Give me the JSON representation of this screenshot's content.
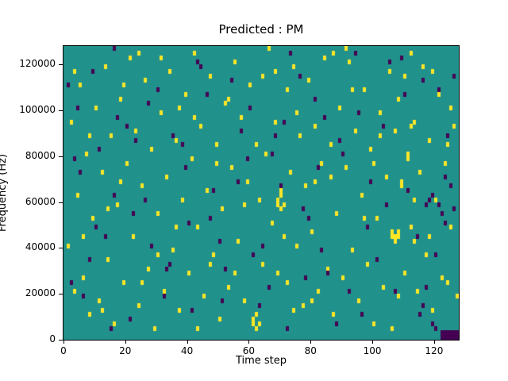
{
  "chart_data": {
    "type": "heatmap",
    "title": "Predicted : PM",
    "xlabel": "Time step",
    "ylabel": "Frequency (Hz)",
    "x_range": [
      0,
      128
    ],
    "y_range": [
      0,
      128000
    ],
    "time_steps": 128,
    "freq_bins": 64,
    "freq_bin_hz": 2000,
    "x_ticks": [
      0,
      20,
      40,
      60,
      80,
      100,
      120
    ],
    "y_ticks": [
      0,
      20000,
      40000,
      60000,
      80000,
      100000,
      120000
    ],
    "grid": false,
    "legend": "none",
    "colors": {
      "background": "#21918c",
      "active": "#fde725",
      "inactive": "#440154",
      "figure": "#ffffff",
      "axis": "#000000"
    },
    "yellow_cells": [
      [
        1,
        20
      ],
      [
        2,
        47
      ],
      [
        3,
        10
      ],
      [
        3,
        58
      ],
      [
        4,
        31
      ],
      [
        5,
        55
      ],
      [
        6,
        13
      ],
      [
        6,
        22
      ],
      [
        7,
        40
      ],
      [
        8,
        5
      ],
      [
        8,
        44
      ],
      [
        9,
        26
      ],
      [
        10,
        50
      ],
      [
        11,
        8
      ],
      [
        12,
        6
      ],
      [
        12,
        36
      ],
      [
        13,
        59
      ],
      [
        14,
        17
      ],
      [
        14,
        28
      ],
      [
        15,
        44
      ],
      [
        16,
        3
      ],
      [
        17,
        29
      ],
      [
        18,
        34
      ],
      [
        18,
        52
      ],
      [
        19,
        12
      ],
      [
        19,
        55
      ],
      [
        20,
        38
      ],
      [
        21,
        61
      ],
      [
        22,
        22
      ],
      [
        23,
        45
      ],
      [
        24,
        7
      ],
      [
        24,
        62
      ],
      [
        25,
        12
      ],
      [
        25,
        33
      ],
      [
        26,
        56
      ],
      [
        27,
        15
      ],
      [
        28,
        41
      ],
      [
        29,
        2
      ],
      [
        30,
        18
      ],
      [
        30,
        27
      ],
      [
        31,
        49
      ],
      [
        31,
        61
      ],
      [
        32,
        10
      ],
      [
        33,
        35
      ],
      [
        34,
        58
      ],
      [
        35,
        19
      ],
      [
        36,
        24
      ],
      [
        36,
        43
      ],
      [
        37,
        6
      ],
      [
        37,
        50
      ],
      [
        38,
        30
      ],
      [
        39,
        53
      ],
      [
        40,
        14
      ],
      [
        41,
        39
      ],
      [
        42,
        48
      ],
      [
        42,
        62
      ],
      [
        43,
        2
      ],
      [
        43,
        24
      ],
      [
        44,
        46
      ],
      [
        45,
        9
      ],
      [
        46,
        32
      ],
      [
        47,
        16
      ],
      [
        47,
        57
      ],
      [
        48,
        18
      ],
      [
        49,
        38
      ],
      [
        49,
        42
      ],
      [
        50,
        4
      ],
      [
        51,
        28
      ],
      [
        52,
        51
      ],
      [
        53,
        11
      ],
      [
        53,
        52
      ],
      [
        54,
        37
      ],
      [
        55,
        14
      ],
      [
        55,
        60
      ],
      [
        56,
        21
      ],
      [
        57,
        48
      ],
      [
        58,
        8
      ],
      [
        58,
        29
      ],
      [
        59,
        34
      ],
      [
        60,
        55
      ],
      [
        61,
        3
      ],
      [
        61,
        4
      ],
      [
        62,
        2
      ],
      [
        62,
        5
      ],
      [
        62,
        42
      ],
      [
        63,
        3
      ],
      [
        63,
        30
      ],
      [
        64,
        16
      ],
      [
        64,
        57
      ],
      [
        65,
        40
      ],
      [
        66,
        63
      ],
      [
        67,
        25
      ],
      [
        68,
        47
      ],
      [
        68,
        58
      ],
      [
        69,
        14
      ],
      [
        69,
        29
      ],
      [
        69,
        30
      ],
      [
        70,
        28
      ],
      [
        70,
        31
      ],
      [
        70,
        32
      ],
      [
        71,
        22
      ],
      [
        71,
        29
      ],
      [
        72,
        12
      ],
      [
        72,
        54
      ],
      [
        73,
        36
      ],
      [
        74,
        6
      ],
      [
        74,
        59
      ],
      [
        75,
        20
      ],
      [
        75,
        49
      ],
      [
        76,
        44
      ],
      [
        77,
        7
      ],
      [
        78,
        33
      ],
      [
        79,
        56
      ],
      [
        80,
        8
      ],
      [
        80,
        23
      ],
      [
        81,
        34
      ],
      [
        81,
        46
      ],
      [
        82,
        10
      ],
      [
        83,
        38
      ],
      [
        84,
        61
      ],
      [
        85,
        15
      ],
      [
        86,
        35
      ],
      [
        86,
        42
      ],
      [
        87,
        5
      ],
      [
        87,
        62
      ],
      [
        88,
        27
      ],
      [
        89,
        50
      ],
      [
        90,
        13
      ],
      [
        91,
        37
      ],
      [
        91,
        63
      ],
      [
        92,
        60
      ],
      [
        93,
        19
      ],
      [
        93,
        54
      ],
      [
        94,
        45
      ],
      [
        95,
        8
      ],
      [
        96,
        31
      ],
      [
        97,
        26
      ],
      [
        97,
        54
      ],
      [
        98,
        16
      ],
      [
        99,
        41
      ],
      [
        100,
        3
      ],
      [
        100,
        38
      ],
      [
        101,
        26
      ],
      [
        102,
        44
      ],
      [
        102,
        49
      ],
      [
        103,
        11
      ],
      [
        104,
        35
      ],
      [
        105,
        58
      ],
      [
        106,
        2
      ],
      [
        106,
        22
      ],
      [
        106,
        23
      ],
      [
        107,
        21
      ],
      [
        107,
        22
      ],
      [
        107,
        45
      ],
      [
        108,
        9
      ],
      [
        108,
        22
      ],
      [
        108,
        23
      ],
      [
        108,
        52
      ],
      [
        109,
        33
      ],
      [
        109,
        34
      ],
      [
        110,
        14
      ],
      [
        110,
        57
      ],
      [
        111,
        39
      ],
      [
        111,
        40
      ],
      [
        112,
        24
      ],
      [
        112,
        46
      ],
      [
        112,
        62
      ],
      [
        113,
        21
      ],
      [
        113,
        30
      ],
      [
        113,
        47
      ],
      [
        114,
        10
      ],
      [
        115,
        36
      ],
      [
        116,
        59
      ],
      [
        117,
        18
      ],
      [
        118,
        22
      ],
      [
        118,
        43
      ],
      [
        119,
        6
      ],
      [
        119,
        58
      ],
      [
        120,
        30
      ],
      [
        121,
        53
      ],
      [
        122,
        13
      ],
      [
        123,
        38
      ],
      [
        124,
        12
      ],
      [
        124,
        42
      ],
      [
        125,
        24
      ],
      [
        125,
        50
      ],
      [
        126,
        46
      ],
      [
        127,
        9
      ]
    ],
    "purple_cells": [
      [
        1,
        55
      ],
      [
        2,
        12
      ],
      [
        3,
        39
      ],
      [
        4,
        50
      ],
      [
        5,
        36
      ],
      [
        6,
        9
      ],
      [
        8,
        17
      ],
      [
        9,
        58
      ],
      [
        10,
        24
      ],
      [
        11,
        41
      ],
      [
        13,
        22
      ],
      [
        15,
        2
      ],
      [
        16,
        31
      ],
      [
        16,
        63
      ],
      [
        17,
        48
      ],
      [
        20,
        46
      ],
      [
        21,
        4
      ],
      [
        22,
        27
      ],
      [
        23,
        43
      ],
      [
        26,
        30
      ],
      [
        27,
        51
      ],
      [
        28,
        20
      ],
      [
        30,
        54
      ],
      [
        32,
        9
      ],
      [
        33,
        15
      ],
      [
        34,
        16
      ],
      [
        35,
        44
      ],
      [
        38,
        42
      ],
      [
        39,
        37
      ],
      [
        40,
        25
      ],
      [
        41,
        6
      ],
      [
        43,
        60
      ],
      [
        44,
        59
      ],
      [
        46,
        53
      ],
      [
        47,
        26
      ],
      [
        48,
        32
      ],
      [
        50,
        21
      ],
      [
        51,
        8
      ],
      [
        52,
        15
      ],
      [
        54,
        56
      ],
      [
        56,
        34
      ],
      [
        57,
        45
      ],
      [
        59,
        39
      ],
      [
        60,
        50
      ],
      [
        61,
        18
      ],
      [
        63,
        7
      ],
      [
        64,
        20
      ],
      [
        66,
        11
      ],
      [
        67,
        40
      ],
      [
        68,
        44
      ],
      [
        70,
        33
      ],
      [
        71,
        47
      ],
      [
        72,
        2
      ],
      [
        73,
        62
      ],
      [
        76,
        57
      ],
      [
        77,
        28
      ],
      [
        78,
        13
      ],
      [
        79,
        26
      ],
      [
        81,
        52
      ],
      [
        82,
        37
      ],
      [
        83,
        19
      ],
      [
        84,
        48
      ],
      [
        85,
        14
      ],
      [
        88,
        3
      ],
      [
        89,
        43
      ],
      [
        90,
        40
      ],
      [
        92,
        10
      ],
      [
        94,
        62
      ],
      [
        95,
        49
      ],
      [
        96,
        5
      ],
      [
        98,
        24
      ],
      [
        99,
        34
      ],
      [
        101,
        17
      ],
      [
        103,
        46
      ],
      [
        104,
        29
      ],
      [
        105,
        60
      ],
      [
        107,
        10
      ],
      [
        109,
        61
      ],
      [
        110,
        53
      ],
      [
        111,
        32
      ],
      [
        114,
        22
      ],
      [
        115,
        5
      ],
      [
        116,
        7
      ],
      [
        116,
        56
      ],
      [
        117,
        11
      ],
      [
        117,
        29
      ],
      [
        118,
        30
      ],
      [
        119,
        3
      ],
      [
        119,
        31
      ],
      [
        120,
        2
      ],
      [
        120,
        18
      ],
      [
        121,
        29
      ],
      [
        121,
        54
      ],
      [
        122,
        27
      ],
      [
        123,
        25
      ],
      [
        123,
        35
      ],
      [
        124,
        44
      ],
      [
        125,
        33
      ],
      [
        126,
        28
      ],
      [
        126,
        57
      ],
      [
        122,
        0
      ],
      [
        123,
        0
      ],
      [
        124,
        0
      ],
      [
        125,
        0
      ],
      [
        126,
        0
      ],
      [
        127,
        0
      ],
      [
        122,
        1
      ],
      [
        123,
        1
      ],
      [
        124,
        1
      ],
      [
        125,
        1
      ],
      [
        126,
        1
      ],
      [
        127,
        1
      ]
    ]
  }
}
